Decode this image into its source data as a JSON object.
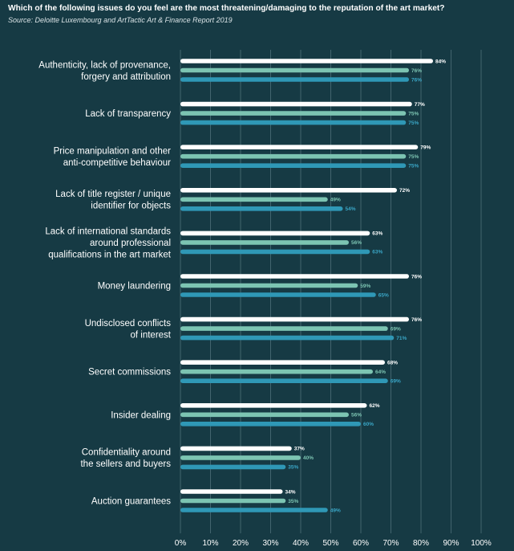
{
  "header": {
    "title": "Which of the following issues do you feel are the most threatening/damaging to the reputation of the art market?",
    "source": "Source: Deloitte Luxembourg and ArtTactic Art & Finance Report 2019"
  },
  "chart_data": {
    "type": "bar",
    "orientation": "horizontal",
    "title": "Which of the following issues do you feel are the most threatening/damaging to the reputation of the art market?",
    "xlim": [
      0,
      100
    ],
    "x_unit": "%",
    "grid": true,
    "x_ticks": [
      "0%",
      "10%",
      "20%",
      "30%",
      "40%",
      "50%",
      "60%",
      "70%",
      "80%",
      "90%",
      "100%"
    ],
    "categories": [
      [
        "Authenticity, lack of provenance,",
        "forgery and attribution"
      ],
      [
        "Lack of transparency"
      ],
      [
        "Price manipulation and other",
        "anti-competitive behaviour"
      ],
      [
        "Lack of title register / unique",
        "identifier for objects"
      ],
      [
        "Lack of international standards",
        "around professional",
        "qualifications in the art market"
      ],
      [
        "Money laundering"
      ],
      [
        "Undisclosed conflicts",
        "of interest"
      ],
      [
        "Secret commissions"
      ],
      [
        "Insider dealing"
      ],
      [
        "Confidentiality around",
        "the sellers and buyers"
      ],
      [
        "Auction guarantees"
      ]
    ],
    "series": [
      {
        "color": "#ffffff",
        "label_color": "#ffffff",
        "values": [
          84,
          77,
          79,
          72,
          63,
          76,
          76,
          68,
          62,
          37,
          34
        ]
      },
      {
        "color": "#7cc4b2",
        "label_color": "#7cc4b2",
        "values": [
          76,
          75,
          75,
          49,
          56,
          59,
          69,
          64,
          56,
          40,
          35
        ]
      },
      {
        "color": "#2f98b6",
        "label_color": "#3aa6c6",
        "values": [
          76,
          75,
          75,
          54,
          63,
          65,
          71,
          69,
          60,
          35,
          49
        ]
      }
    ]
  },
  "colors": {
    "background": "#163a44",
    "grid": "#4f7079",
    "text": "#ffffff"
  }
}
